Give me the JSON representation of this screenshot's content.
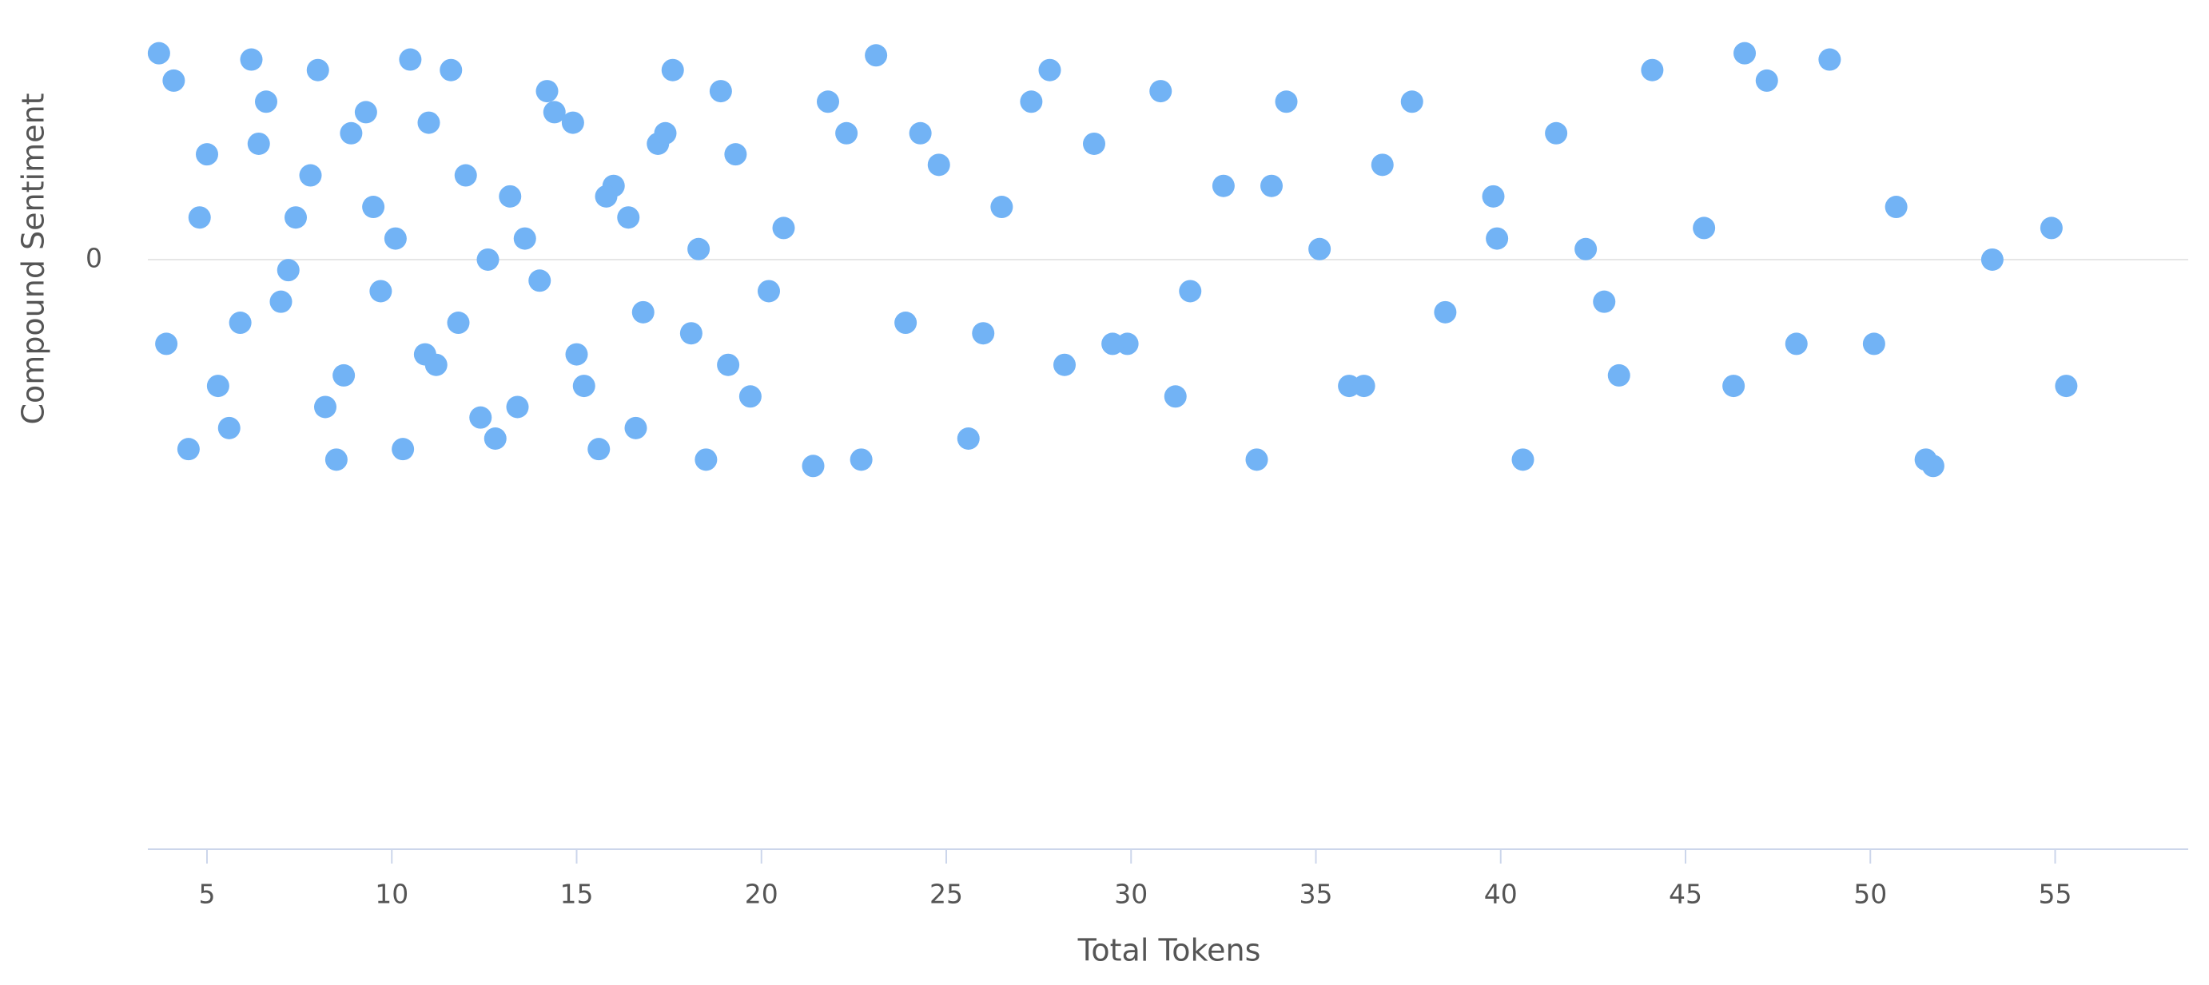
{
  "chart_data": {
    "type": "scatter",
    "x_label": "Total Tokens",
    "y_label": "Compound Sentiment",
    "xlim": [
      3.4,
      58.6
    ],
    "xticks": [
      5,
      10,
      15,
      20,
      25,
      30,
      35,
      40,
      45,
      50,
      55
    ],
    "ylim": [
      -2.8,
      1.1
    ],
    "yticks": [
      0
    ],
    "grid": true,
    "series": [
      {
        "color": "#72b3f5",
        "x": [
          4.1,
          5.3,
          6.2,
          7.0,
          7.8,
          8.5,
          9.3,
          10.1,
          10.9,
          11.6,
          12.4,
          13.2,
          14.0,
          14.9,
          15.6,
          16.4,
          17.2,
          18.1,
          18.9,
          19.7,
          20.6,
          21.4,
          22.3,
          23.1,
          23.9,
          24.8,
          25.6,
          26.5,
          27.3,
          28.2,
          29.0,
          29.9,
          30.8,
          31.6,
          32.5,
          33.4,
          34.2,
          35.1,
          35.9,
          36.8,
          37.6,
          38.5,
          39.8,
          40.6,
          41.5,
          42.3,
          43.2,
          44.1,
          45.5,
          46.3,
          47.2,
          48.0,
          48.9,
          50.1,
          50.7,
          51.7,
          53.3,
          54.9,
          55.3,
          3.7,
          4.5,
          5.0,
          5.9,
          6.6,
          7.4,
          8.2,
          8.9,
          9.7,
          10.5,
          11.2,
          12.0,
          12.8,
          13.6,
          14.4,
          15.2,
          16.0,
          16.8,
          17.6,
          18.5,
          19.3,
          20.2,
          3.9,
          4.8,
          5.6,
          6.4,
          7.2,
          8.0,
          8.7,
          9.5,
          10.3,
          11.0,
          11.8,
          12.6,
          13.4,
          14.2,
          15.0,
          15.8,
          16.6,
          17.4,
          18.3,
          19.1,
          21.8,
          22.7,
          24.3,
          26.0,
          27.8,
          29.5,
          31.2,
          33.8,
          36.3,
          39.9,
          42.8,
          46.6,
          51.5
        ],
        "values": [
          0.85,
          -0.6,
          0.95,
          -0.2,
          0.4,
          -0.95,
          0.7,
          0.1,
          -0.45,
          0.9,
          -0.75,
          0.3,
          -0.1,
          0.65,
          -0.9,
          0.2,
          0.55,
          -0.35,
          0.8,
          -0.65,
          0.15,
          -0.98,
          0.6,
          0.97,
          -0.3,
          0.45,
          -0.85,
          0.25,
          0.75,
          -0.5,
          0.55,
          -0.4,
          0.8,
          -0.15,
          0.35,
          -0.95,
          0.75,
          0.05,
          -0.6,
          0.45,
          0.75,
          -0.25,
          0.3,
          -0.95,
          0.6,
          0.05,
          -0.55,
          0.9,
          0.15,
          -0.6,
          0.85,
          -0.4,
          0.95,
          -0.4,
          0.25,
          -0.98,
          0.0,
          0.15,
          -0.6,
          0.98,
          -0.9,
          0.5,
          -0.3,
          0.75,
          0.2,
          -0.7,
          0.6,
          -0.15,
          0.95,
          -0.5,
          0.4,
          -0.85,
          0.1,
          0.7,
          -0.6,
          0.35,
          -0.25,
          0.9,
          -0.95,
          0.5,
          -0.15,
          -0.4,
          0.2,
          -0.8,
          0.55,
          -0.05,
          0.9,
          -0.55,
          0.25,
          -0.9,
          0.65,
          -0.3,
          0.0,
          -0.7,
          0.8,
          -0.45,
          0.3,
          -0.8,
          0.6,
          0.05,
          -0.5,
          0.75,
          -0.95,
          0.6,
          -0.35,
          0.9,
          -0.4,
          -0.65,
          0.35,
          -0.6,
          0.1,
          -0.2,
          0.98,
          -0.95
        ]
      }
    ]
  }
}
